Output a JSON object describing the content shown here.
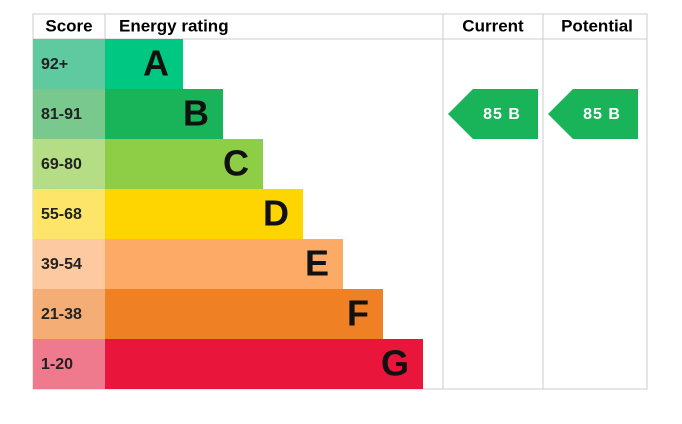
{
  "header": {
    "score": "Score",
    "rating": "Energy rating",
    "current": "Current",
    "potential": "Potential"
  },
  "bands": [
    {
      "score": "92+",
      "letter": "A",
      "color": "#00c781",
      "score_color": "#5fc9a0"
    },
    {
      "score": "81-91",
      "letter": "B",
      "color": "#19b459",
      "score_color": "#79c88e"
    },
    {
      "score": "69-80",
      "letter": "C",
      "color": "#8dce46",
      "score_color": "#b5dd86"
    },
    {
      "score": "55-68",
      "letter": "D",
      "color": "#ffd500",
      "score_color": "#fde56a"
    },
    {
      "score": "39-54",
      "letter": "E",
      "color": "#fcaa65",
      "score_color": "#fdc9a0"
    },
    {
      "score": "21-38",
      "letter": "F",
      "color": "#ef8023",
      "score_color": "#f4ae75"
    },
    {
      "score": "1-20",
      "letter": "G",
      "color": "#e9153b",
      "score_color": "#f07a8d"
    }
  ],
  "current": {
    "label": "85 B",
    "band": 1,
    "color": "#19b459"
  },
  "potential": {
    "label": "85 B",
    "band": 1,
    "color": "#19b459"
  }
}
